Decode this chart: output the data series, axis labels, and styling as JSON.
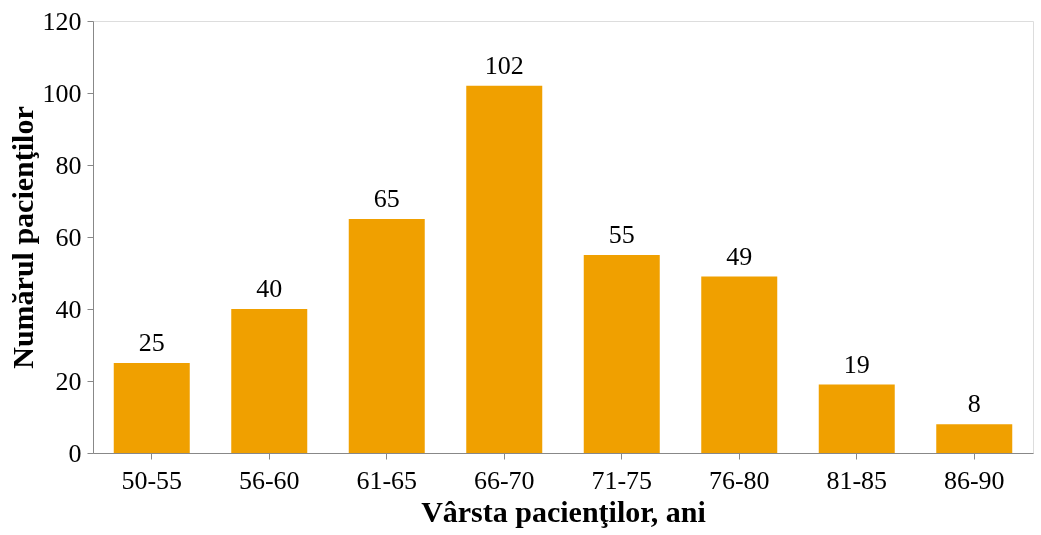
{
  "chart_data": {
    "type": "bar",
    "xlabel": "Vârsta pacienţilor, ani",
    "ylabel": "Numărul pacienţilor",
    "categories": [
      "50-55",
      "56-60",
      "61-65",
      "66-70",
      "71-75",
      "76-80",
      "81-85",
      "86-90"
    ],
    "values": [
      25,
      40,
      65,
      102,
      55,
      49,
      19,
      8
    ],
    "color": "#f0a000",
    "ylim": [
      0,
      120
    ],
    "yticks": [
      0,
      20,
      40,
      60,
      80,
      100,
      120
    ],
    "grid": false,
    "data_labels": true
  }
}
